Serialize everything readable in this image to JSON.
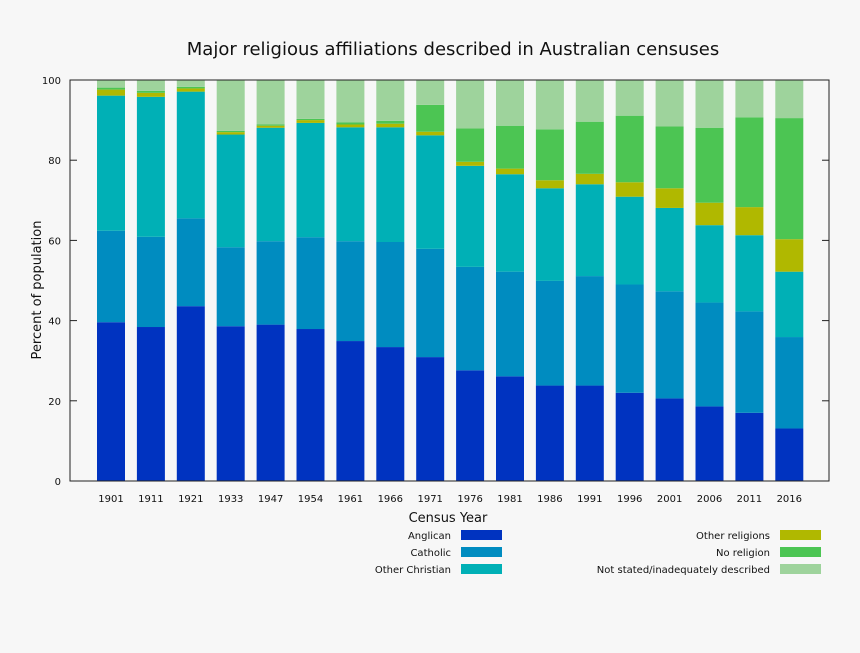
{
  "chart_data": {
    "type": "bar",
    "stacked": true,
    "title": "Major religious affiliations described in Australian censuses",
    "xlabel": "Census Year",
    "ylabel": "Percent of population",
    "ylim": [
      0,
      100
    ],
    "yticks": [
      0,
      20,
      40,
      60,
      80,
      100
    ],
    "grid": false,
    "legend_position": "bottom",
    "categories": [
      "1901",
      "1911",
      "1921",
      "1933",
      "1947",
      "1954",
      "1961",
      "1966",
      "1971",
      "1976",
      "1981",
      "1986",
      "1991",
      "1996",
      "2001",
      "2006",
      "2011",
      "2016"
    ],
    "series": [
      {
        "name": "Anglican",
        "color": "#0033c0",
        "values": [
          39.6,
          38.4,
          43.6,
          38.6,
          39.0,
          37.9,
          34.9,
          33.4,
          30.9,
          27.6,
          26.1,
          23.8,
          23.8,
          22.0,
          20.6,
          18.6,
          17.0,
          13.1
        ]
      },
      {
        "name": "Catholic",
        "color": "#008cc0",
        "values": [
          22.8,
          22.5,
          21.9,
          19.7,
          20.8,
          22.9,
          24.9,
          26.2,
          27.0,
          25.8,
          26.1,
          26.1,
          27.3,
          27.0,
          26.7,
          25.9,
          25.3,
          22.8
        ]
      },
      {
        "name": "Other Christian",
        "color": "#00b0b6",
        "values": [
          33.7,
          34.9,
          31.6,
          28.1,
          28.3,
          28.5,
          28.4,
          28.6,
          28.3,
          25.2,
          24.3,
          23.1,
          22.9,
          21.9,
          20.8,
          19.3,
          19.0,
          16.3
        ]
      },
      {
        "name": "Other religions",
        "color": "#b0b800",
        "values": [
          1.5,
          1.0,
          0.8,
          0.6,
          0.5,
          0.7,
          0.7,
          0.9,
          0.9,
          1.0,
          1.4,
          2.0,
          2.6,
          3.6,
          4.9,
          5.6,
          7.0,
          8.1
        ]
      },
      {
        "name": "No religion",
        "color": "#4cc553",
        "values": [
          0.5,
          0.5,
          0.4,
          0.3,
          0.3,
          0.3,
          0.5,
          0.7,
          6.7,
          8.3,
          10.7,
          12.7,
          13.0,
          16.6,
          15.4,
          18.7,
          22.4,
          30.2
        ]
      },
      {
        "name": "Not stated/inadequately described",
        "color": "#9ed39c",
        "values": [
          1.9,
          2.7,
          1.7,
          12.7,
          11.1,
          9.7,
          10.6,
          10.2,
          6.2,
          12.1,
          11.4,
          12.3,
          10.4,
          8.9,
          11.6,
          11.9,
          9.3,
          9.5
        ]
      }
    ]
  }
}
